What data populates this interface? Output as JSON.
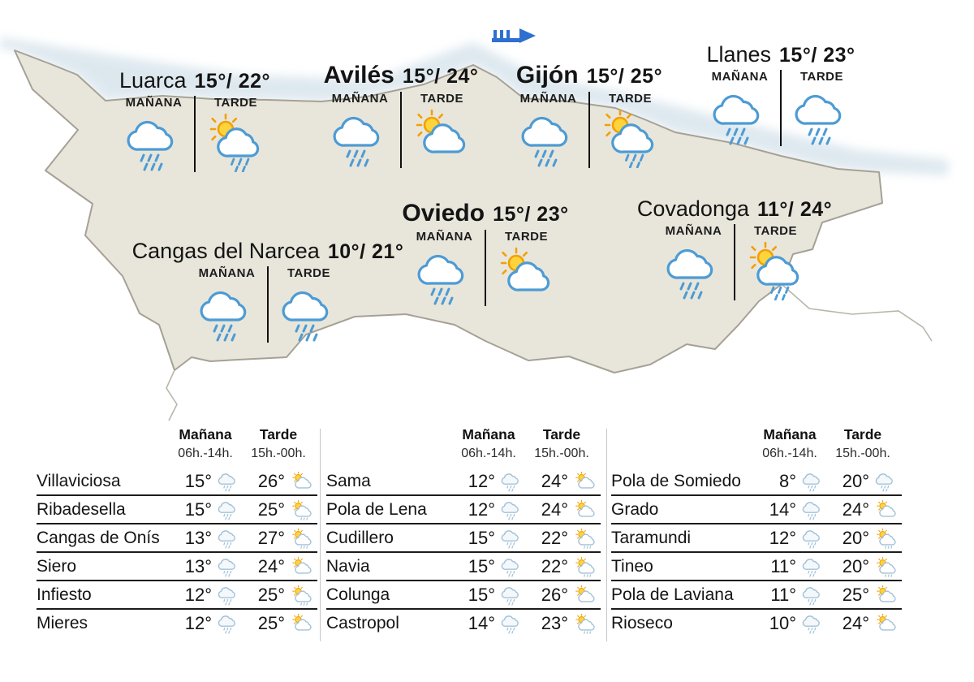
{
  "map": {
    "region": "Asturias",
    "wind_flag": {
      "icon": "wind-flag-icon",
      "color": "#2e6fd0"
    },
    "labels": {
      "manana": "MAÑANA",
      "tarde": "TARDE"
    },
    "stations": [
      {
        "name": "Luarca",
        "temps": "15°/ 22°",
        "manana_icon": "rain",
        "tarde_icon": "sun-cloud-rain"
      },
      {
        "name": "Avilés",
        "temps": "15°/ 24°",
        "manana_icon": "rain",
        "tarde_icon": "sun-cloud"
      },
      {
        "name": "Gijón",
        "temps": "15°/ 25°",
        "manana_icon": "rain",
        "tarde_icon": "sun-cloud-rain"
      },
      {
        "name": "Llanes",
        "temps": "15°/ 23°",
        "manana_icon": "rain",
        "tarde_icon": "rain"
      },
      {
        "name": "Oviedo",
        "temps": "15°/ 23°",
        "manana_icon": "rain",
        "tarde_icon": "sun-cloud"
      },
      {
        "name": "Covadonga",
        "temps": "11°/ 24°",
        "manana_icon": "rain",
        "tarde_icon": "sun-cloud-rain"
      },
      {
        "name": "Cangas del Narcea",
        "temps": "10°/ 21°",
        "manana_icon": "rain",
        "tarde_icon": "rain"
      }
    ],
    "colors": {
      "land": "#e8e6db",
      "land_border": "#a6a195",
      "sea": "#d5e3eb",
      "cloud_blue": "#4d9bd4",
      "sun_fill": "#FFD43B",
      "sun_stroke": "#F2A007",
      "small_icon_blue": "#a3c2d8"
    }
  },
  "tables": {
    "header": {
      "manana": "Mañana",
      "manana_hours": "06h.-14h.",
      "tarde": "Tarde",
      "tarde_hours": "15h.-00h."
    },
    "columns": [
      {
        "rows": [
          {
            "name": "Villaviciosa",
            "t1": "15°",
            "i1": "rain",
            "t2": "26°",
            "i2": "sun-cloud"
          },
          {
            "name": "Ribadesella",
            "t1": "15°",
            "i1": "rain",
            "t2": "25°",
            "i2": "sun-cloud-rain"
          },
          {
            "name": "Cangas de Onís",
            "t1": "13°",
            "i1": "rain",
            "t2": "27°",
            "i2": "sun-cloud-rain"
          },
          {
            "name": "Siero",
            "t1": "13°",
            "i1": "rain",
            "t2": "24°",
            "i2": "sun-cloud"
          },
          {
            "name": "Infiesto",
            "t1": "12°",
            "i1": "rain",
            "t2": "25°",
            "i2": "sun-cloud-rain"
          },
          {
            "name": "Mieres",
            "t1": "12°",
            "i1": "rain",
            "t2": "25°",
            "i2": "sun-cloud"
          }
        ]
      },
      {
        "rows": [
          {
            "name": "Sama",
            "t1": "12°",
            "i1": "rain",
            "t2": "24°",
            "i2": "sun-cloud"
          },
          {
            "name": "Pola de Lena",
            "t1": "12°",
            "i1": "rain",
            "t2": "24°",
            "i2": "sun-cloud"
          },
          {
            "name": "Cudillero",
            "t1": "15°",
            "i1": "rain",
            "t2": "22°",
            "i2": "sun-cloud-rain"
          },
          {
            "name": "Navia",
            "t1": "15°",
            "i1": "rain",
            "t2": "22°",
            "i2": "sun-cloud-rain"
          },
          {
            "name": "Colunga",
            "t1": "15°",
            "i1": "rain",
            "t2": "26°",
            "i2": "sun-cloud"
          },
          {
            "name": "Castropol",
            "t1": "14°",
            "i1": "rain",
            "t2": "23°",
            "i2": "sun-cloud-rain"
          }
        ]
      },
      {
        "rows": [
          {
            "name": "Pola de Somiedo",
            "t1": "8°",
            "i1": "rain",
            "t2": "20°",
            "i2": "rain"
          },
          {
            "name": "Grado",
            "t1": "14°",
            "i1": "rain",
            "t2": "24°",
            "i2": "sun-cloud"
          },
          {
            "name": "Taramundi",
            "t1": "12°",
            "i1": "rain",
            "t2": "20°",
            "i2": "sun-cloud-rain"
          },
          {
            "name": "Tineo",
            "t1": "11°",
            "i1": "rain",
            "t2": "20°",
            "i2": "sun-cloud-rain"
          },
          {
            "name": "Pola de Laviana",
            "t1": "11°",
            "i1": "rain",
            "t2": "25°",
            "i2": "sun-cloud"
          },
          {
            "name": "Rioseco",
            "t1": "10°",
            "i1": "rain",
            "t2": "24°",
            "i2": "sun-cloud"
          }
        ]
      }
    ]
  }
}
